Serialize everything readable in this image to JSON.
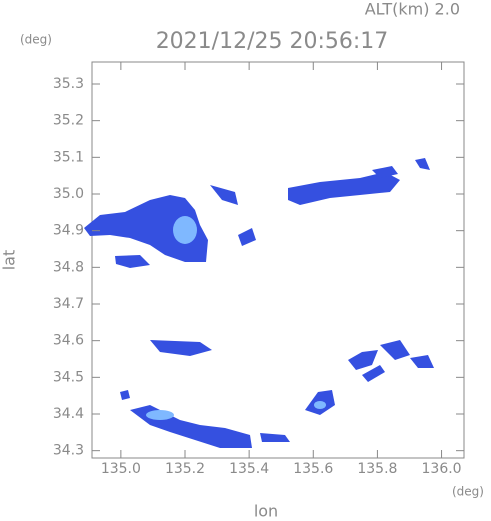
{
  "chart_data": {
    "type": "map",
    "title": "2021/12/25 20:56:17",
    "subtitle": "ALT(km) 2.0",
    "y_unit": "(deg)",
    "x_unit": "(deg)",
    "xlabel": "lon",
    "ylabel": "lat",
    "xlim": [
      134.91,
      136.07
    ],
    "ylim": [
      34.28,
      35.36
    ],
    "xticks": [
      {
        "value": 135.0,
        "label": "135.0"
      },
      135.2,
      135.4,
      135.6,
      135.8,
      {
        "value": 136.0,
        "label": "136.0"
      }
    ],
    "yticks": [
      34.3,
      34.4,
      34.5,
      34.6,
      34.7,
      34.8,
      34.9,
      {
        "value": 35.0,
        "label": "35.0"
      },
      35.1,
      35.2,
      35.3
    ],
    "color": "#3550e0"
  }
}
